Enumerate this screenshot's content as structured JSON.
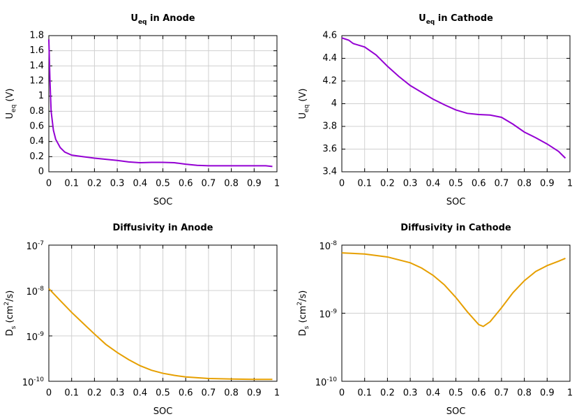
{
  "chart_data": [
    {
      "type": "line",
      "title": [
        {
          "text": "U"
        },
        {
          "text": "eq",
          "sub": true
        },
        {
          "text": " in Anode"
        }
      ],
      "xlabel": [
        {
          "text": "SOC"
        }
      ],
      "ylabel": [
        {
          "text": "U"
        },
        {
          "text": "eq",
          "sub": true
        },
        {
          "text": " (V)"
        }
      ],
      "x": [
        0,
        0.005,
        0.01,
        0.02,
        0.03,
        0.05,
        0.07,
        0.1,
        0.15,
        0.2,
        0.25,
        0.3,
        0.35,
        0.4,
        0.45,
        0.5,
        0.55,
        0.6,
        0.65,
        0.7,
        0.75,
        0.8,
        0.85,
        0.9,
        0.95,
        0.98
      ],
      "values": [
        1.75,
        1.2,
        0.8,
        0.55,
        0.43,
        0.32,
        0.26,
        0.22,
        0.2,
        0.18,
        0.165,
        0.15,
        0.13,
        0.12,
        0.125,
        0.125,
        0.12,
        0.1,
        0.085,
        0.08,
        0.08,
        0.08,
        0.08,
        0.08,
        0.08,
        0.07
      ],
      "color": "#9400d3",
      "xlim": [
        0,
        1
      ],
      "xticks": [
        0,
        0.1,
        0.2,
        0.3,
        0.4,
        0.5,
        0.6,
        0.7,
        0.8,
        0.9,
        1
      ],
      "ylim": [
        0,
        1.8
      ],
      "yticks": [
        0,
        0.2,
        0.4,
        0.6,
        0.8,
        1,
        1.2,
        1.4,
        1.6,
        1.8
      ],
      "log_y": false,
      "grid": true
    },
    {
      "type": "line",
      "title": [
        {
          "text": "U"
        },
        {
          "text": "eq",
          "sub": true
        },
        {
          "text": " in Cathode"
        }
      ],
      "xlabel": [
        {
          "text": "SOC"
        }
      ],
      "ylabel": [
        {
          "text": "U"
        },
        {
          "text": "eq",
          "sub": true
        },
        {
          "text": " (V)"
        }
      ],
      "x": [
        0,
        0.03,
        0.05,
        0.1,
        0.15,
        0.2,
        0.25,
        0.3,
        0.35,
        0.4,
        0.45,
        0.5,
        0.55,
        0.6,
        0.65,
        0.7,
        0.75,
        0.8,
        0.85,
        0.9,
        0.95,
        0.98
      ],
      "values": [
        4.58,
        4.56,
        4.53,
        4.5,
        4.43,
        4.33,
        4.24,
        4.16,
        4.1,
        4.04,
        3.99,
        3.945,
        3.915,
        3.905,
        3.9,
        3.88,
        3.82,
        3.75,
        3.7,
        3.645,
        3.58,
        3.52
      ],
      "color": "#9400d3",
      "xlim": [
        0,
        1
      ],
      "xticks": [
        0,
        0.1,
        0.2,
        0.3,
        0.4,
        0.5,
        0.6,
        0.7,
        0.8,
        0.9,
        1
      ],
      "ylim": [
        3.4,
        4.6
      ],
      "yticks": [
        3.4,
        3.6,
        3.8,
        4,
        4.2,
        4.4,
        4.6
      ],
      "log_y": false,
      "grid": true
    },
    {
      "type": "line",
      "title": [
        {
          "text": "Diffusivity in Anode"
        }
      ],
      "xlabel": [
        {
          "text": "SOC"
        }
      ],
      "ylabel": [
        {
          "text": "D"
        },
        {
          "text": "s",
          "sub": true
        },
        {
          "text": " (cm"
        },
        {
          "text": "2",
          "sup": true
        },
        {
          "text": "/s)"
        }
      ],
      "x": [
        0,
        0.05,
        0.1,
        0.15,
        0.2,
        0.25,
        0.3,
        0.35,
        0.4,
        0.45,
        0.5,
        0.55,
        0.6,
        0.65,
        0.7,
        0.8,
        0.9,
        0.98
      ],
      "values": [
        1.1e-08,
        6e-09,
        3.3e-09,
        1.9e-09,
        1.1e-09,
        6.5e-10,
        4.3e-10,
        3e-10,
        2.2e-10,
        1.75e-10,
        1.5e-10,
        1.35e-10,
        1.25e-10,
        1.2e-10,
        1.15e-10,
        1.12e-10,
        1.1e-10,
        1.1e-10
      ],
      "color": "#e69f00",
      "xlim": [
        0,
        1
      ],
      "xticks": [
        0,
        0.1,
        0.2,
        0.3,
        0.4,
        0.5,
        0.6,
        0.7,
        0.8,
        0.9,
        1
      ],
      "ylim": [
        1e-10,
        1e-07
      ],
      "yticks": [
        {
          "value": 1e-10,
          "label": [
            {
              "text": "10"
            },
            {
              "text": "-10",
              "sup": true
            }
          ]
        },
        {
          "value": 1e-09,
          "label": [
            {
              "text": "10"
            },
            {
              "text": "-9",
              "sup": true
            }
          ]
        },
        {
          "value": 1e-08,
          "label": [
            {
              "text": "10"
            },
            {
              "text": "-8",
              "sup": true
            }
          ]
        },
        {
          "value": 1e-07,
          "label": [
            {
              "text": "10"
            },
            {
              "text": "-7",
              "sup": true
            }
          ]
        }
      ],
      "log_y": true,
      "grid": true
    },
    {
      "type": "line",
      "title": [
        {
          "text": "Diffusivity in Cathode"
        }
      ],
      "xlabel": [
        {
          "text": "SOC"
        }
      ],
      "ylabel": [
        {
          "text": "D"
        },
        {
          "text": "s",
          "sub": true
        },
        {
          "text": " (cm"
        },
        {
          "text": "2",
          "sup": true
        },
        {
          "text": "/s)"
        }
      ],
      "x": [
        0,
        0.1,
        0.2,
        0.3,
        0.35,
        0.4,
        0.45,
        0.5,
        0.55,
        0.6,
        0.62,
        0.65,
        0.7,
        0.75,
        0.8,
        0.85,
        0.9,
        0.95,
        0.98
      ],
      "values": [
        7.7e-09,
        7.4e-09,
        6.7e-09,
        5.5e-09,
        4.6e-09,
        3.6e-09,
        2.6e-09,
        1.7e-09,
        1.05e-09,
        6.8e-10,
        6.4e-10,
        7.5e-10,
        1.2e-09,
        2e-09,
        3e-09,
        4.1e-09,
        5e-09,
        5.8e-09,
        6.4e-09
      ],
      "color": "#e69f00",
      "xlim": [
        0,
        1
      ],
      "xticks": [
        0,
        0.1,
        0.2,
        0.3,
        0.4,
        0.5,
        0.6,
        0.7,
        0.8,
        0.9,
        1
      ],
      "ylim": [
        1e-10,
        1e-08
      ],
      "yticks": [
        {
          "value": 1e-10,
          "label": [
            {
              "text": "10"
            },
            {
              "text": "-10",
              "sup": true
            }
          ]
        },
        {
          "value": 1e-09,
          "label": [
            {
              "text": "10"
            },
            {
              "text": "-9",
              "sup": true
            }
          ]
        },
        {
          "value": 1e-08,
          "label": [
            {
              "text": "10"
            },
            {
              "text": "-8",
              "sup": true
            }
          ]
        }
      ],
      "log_y": true,
      "grid": true
    }
  ]
}
